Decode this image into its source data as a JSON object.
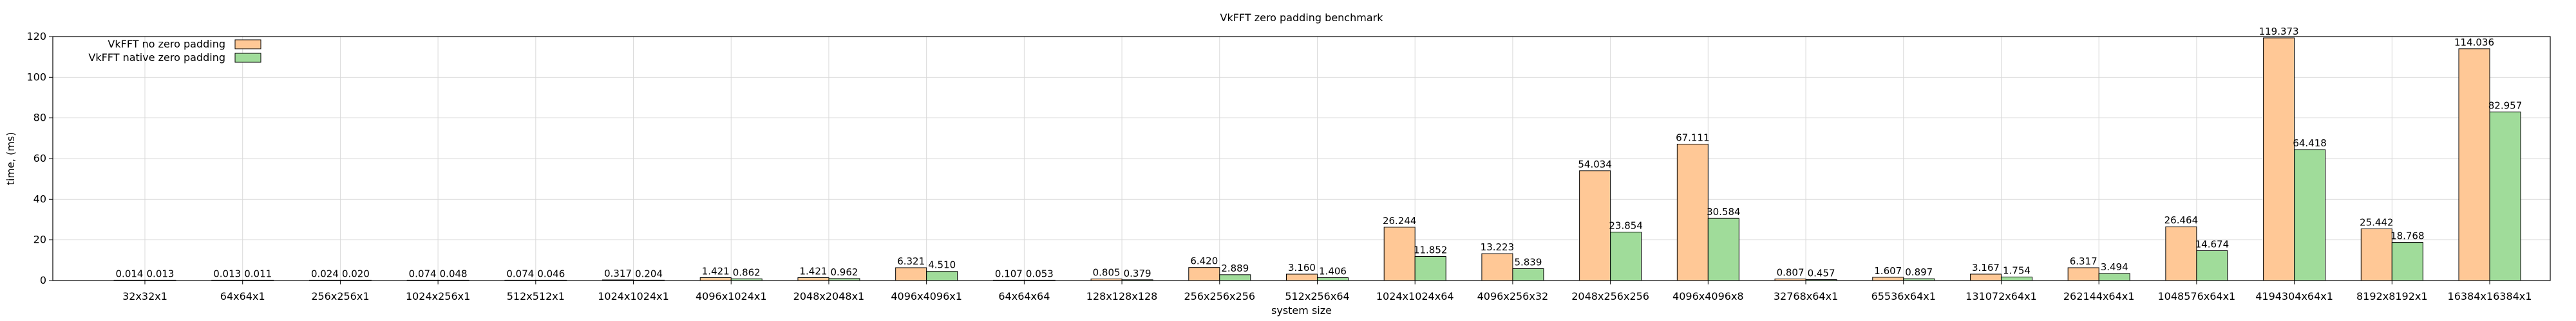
{
  "chart_data": {
    "type": "bar",
    "title": "VkFFT zero padding benchmark",
    "xlabel": "system size",
    "ylabel": "time, (ms)",
    "ylim": [
      0,
      120
    ],
    "yticks": [
      0,
      20,
      40,
      60,
      80,
      100,
      120
    ],
    "grid": true,
    "legend_position": "top-left",
    "categories": [
      "32x32x1",
      "64x64x1",
      "256x256x1",
      "1024x256x1",
      "512x512x1",
      "1024x1024x1",
      "4096x1024x1",
      "2048x2048x1",
      "4096x4096x1",
      "64x64x64",
      "128x128x128",
      "256x256x256",
      "512x256x64",
      "1024x1024x64",
      "4096x256x32",
      "2048x256x256",
      "4096x4096x8",
      "32768x64x1",
      "65536x64x1",
      "131072x64x1",
      "262144x64x1",
      "1048576x64x1",
      "4194304x64x1",
      "8192x8192x1",
      "16384x16384x1"
    ],
    "series": [
      {
        "name": "VkFFT no zero padding",
        "color": "#ffc896",
        "values": [
          0.014,
          0.013,
          0.024,
          0.074,
          0.074,
          0.317,
          1.421,
          1.421,
          6.321,
          0.107,
          0.805,
          6.42,
          3.16,
          26.244,
          13.223,
          54.034,
          67.111,
          0.807,
          1.607,
          3.167,
          6.317,
          26.464,
          119.373,
          25.442,
          114.036
        ],
        "labels": [
          "0.014",
          "0.013",
          "0.024",
          "0.074",
          "0.074",
          "0.317",
          "1.421",
          "1.421",
          "6.321",
          "0.107",
          "0.805",
          "6.420",
          "3.160",
          "26.244",
          "13.223",
          "54.034",
          "67.111",
          "0.807",
          "1.607",
          "3.167",
          "6.317",
          "26.464",
          "119.373",
          "25.442",
          "114.036"
        ]
      },
      {
        "name": "VkFFT native zero padding",
        "color": "#a0dc9a",
        "values": [
          0.013,
          0.011,
          0.02,
          0.048,
          0.046,
          0.204,
          0.862,
          0.962,
          4.51,
          0.053,
          0.379,
          2.889,
          1.406,
          11.852,
          5.839,
          23.854,
          30.584,
          0.457,
          0.897,
          1.754,
          3.494,
          14.674,
          64.418,
          18.768,
          82.957
        ],
        "labels": [
          "0.013",
          "0.011",
          "0.020",
          "0.048",
          "0.046",
          "0.204",
          "0.862",
          "0.962",
          "4.510",
          "0.053",
          "0.379",
          "2.889",
          "1.406",
          "11.852",
          "5.839",
          "23.854",
          "30.584",
          "0.457",
          "0.897",
          "1.754",
          "3.494",
          "14.674",
          "64.418",
          "18.768",
          "82.957"
        ]
      }
    ]
  }
}
